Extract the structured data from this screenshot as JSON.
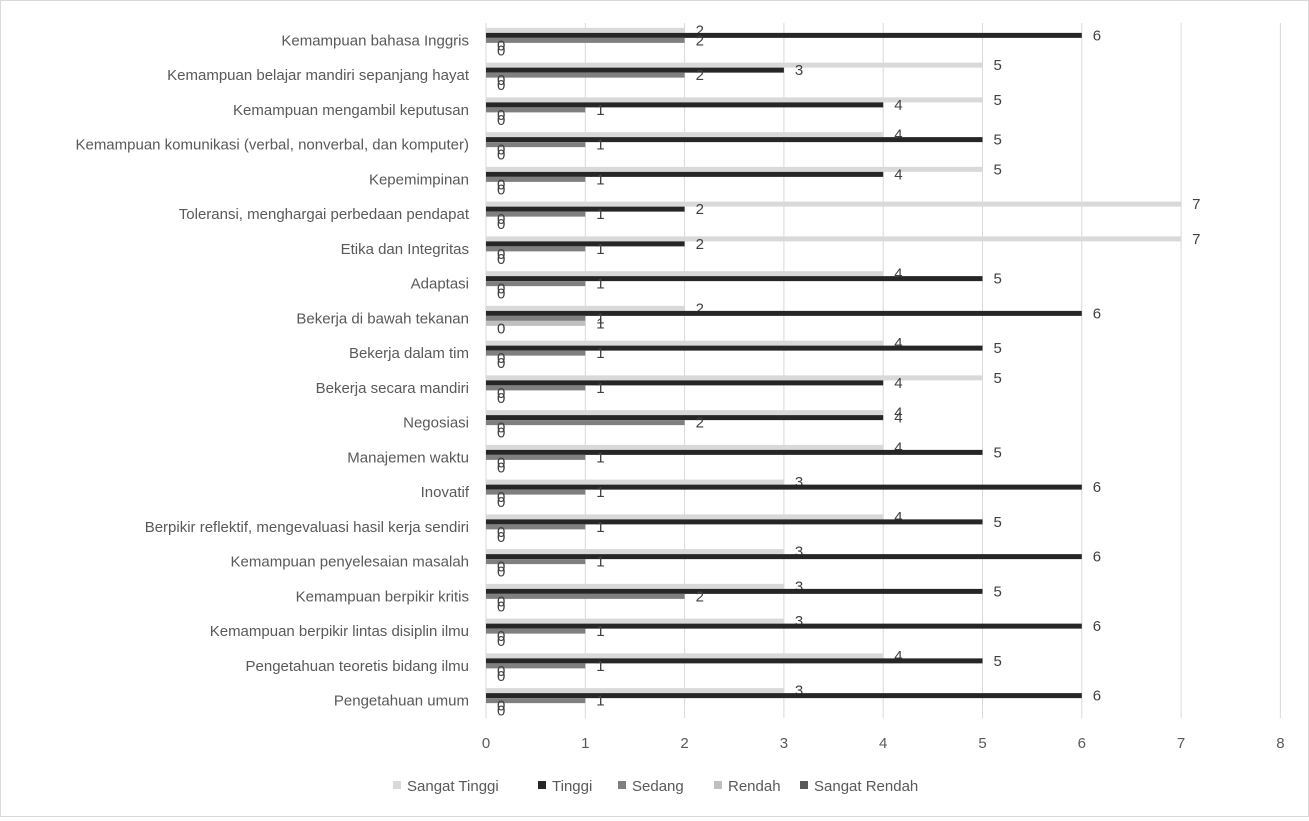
{
  "colors": {
    "Sangat Tinggi": "#d9d9d9",
    "Tinggi": "#262626",
    "Sedang": "#7f7f7f",
    "Rendah": "#bfbfbf",
    "Sangat Rendah": "#595959",
    "gridline": "#d9d9d9",
    "text": "#595959"
  },
  "chart_data": {
    "type": "bar",
    "orientation": "horizontal",
    "categories": [
      "Kemampuan bahasa Inggris",
      "Kemampuan belajar mandiri sepanjang hayat",
      "Kemampuan mengambil keputusan",
      "Kemampuan komunikasi (verbal, nonverbal, dan komputer)",
      "Kepemimpinan",
      "Toleransi, menghargai perbedaan pendapat",
      "Etika dan Integritas",
      "Adaptasi",
      "Bekerja di bawah tekanan",
      "Bekerja dalam tim",
      "Bekerja secara mandiri",
      "Negosiasi",
      "Manajemen waktu",
      "Inovatif",
      "Berpikir reflektif, mengevaluasi hasil kerja sendiri",
      "Kemampuan penyelesaian masalah",
      "Kemampuan berpikir kritis",
      "Kemampuan berpikir lintas disiplin ilmu",
      "Pengetahuan teoretis bidang ilmu",
      "Pengetahuan umum"
    ],
    "series": [
      {
        "name": "Sangat Tinggi",
        "values": [
          2,
          5,
          5,
          4,
          5,
          7,
          7,
          4,
          2,
          4,
          5,
          4,
          4,
          3,
          4,
          3,
          3,
          3,
          4,
          3
        ]
      },
      {
        "name": "Tinggi",
        "values": [
          6,
          3,
          4,
          5,
          4,
          2,
          2,
          5,
          6,
          5,
          4,
          4,
          5,
          6,
          5,
          6,
          5,
          6,
          5,
          6
        ]
      },
      {
        "name": "Sedang",
        "values": [
          2,
          2,
          1,
          1,
          1,
          1,
          1,
          1,
          1,
          1,
          1,
          2,
          1,
          1,
          1,
          1,
          2,
          1,
          1,
          1
        ]
      },
      {
        "name": "Rendah",
        "values": [
          0,
          0,
          0,
          0,
          0,
          0,
          0,
          0,
          1,
          0,
          0,
          0,
          0,
          0,
          0,
          0,
          0,
          0,
          0,
          0
        ]
      },
      {
        "name": "Sangat Rendah",
        "values": [
          0,
          0,
          0,
          0,
          0,
          0,
          0,
          0,
          0,
          0,
          0,
          0,
          0,
          0,
          0,
          0,
          0,
          0,
          0,
          0
        ]
      }
    ],
    "xlim": [
      0,
      8
    ],
    "xticks": [
      "0",
      "1",
      "2",
      "3",
      "4",
      "5",
      "6",
      "7",
      "8"
    ],
    "grid": true,
    "legend_position": "bottom"
  }
}
